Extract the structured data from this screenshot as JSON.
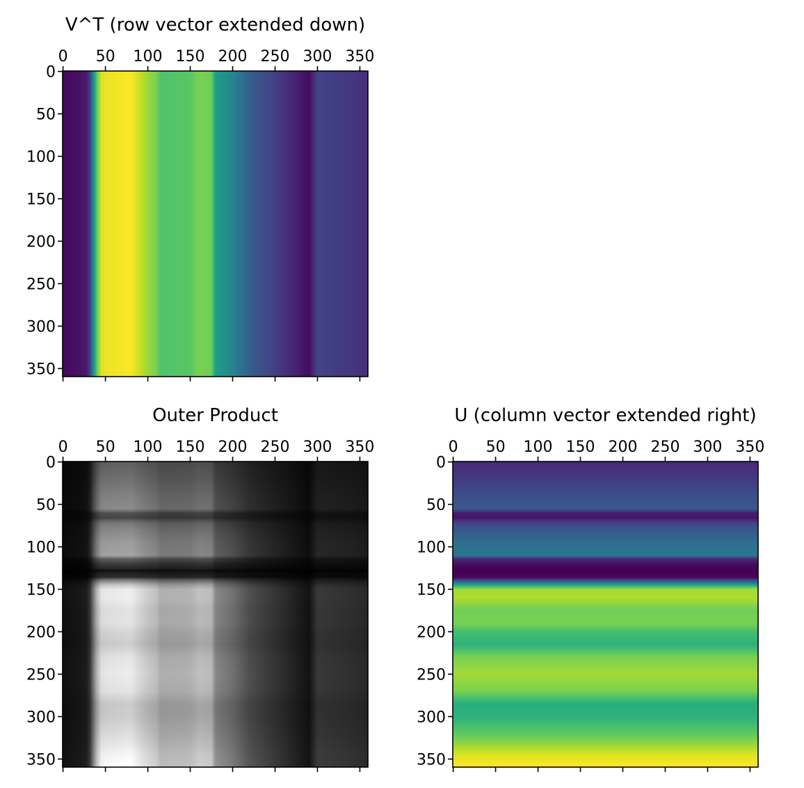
{
  "chart_data": [
    {
      "type": "heatmap",
      "title": "V^T (row vector extended down)",
      "colormap": "viridis",
      "source_vector": "v",
      "orientation": "rows repeated",
      "xlim": [
        -0.5,
        359.5
      ],
      "ylim": [
        359.5,
        -0.5
      ],
      "xticks": [
        "0",
        "50",
        "100",
        "150",
        "200",
        "250",
        "300",
        "350"
      ],
      "yticks": [
        "0",
        "50",
        "100",
        "150",
        "200",
        "250",
        "300",
        "350"
      ]
    },
    {
      "type": "heatmap",
      "title": "Outer Product",
      "colormap": "gray",
      "xlim": [
        -0.5,
        359.5
      ],
      "ylim": [
        359.5,
        -0.5
      ],
      "xticks": [
        "0",
        "50",
        "100",
        "150",
        "200",
        "250",
        "300",
        "350"
      ],
      "yticks": [
        "0",
        "50",
        "100",
        "150",
        "200",
        "250",
        "300",
        "350"
      ]
    },
    {
      "type": "heatmap",
      "title": "U (column vector extended right)",
      "colormap": "viridis",
      "source_vector": "u",
      "orientation": "columns repeated",
      "xlim": [
        -0.5,
        359.5
      ],
      "ylim": [
        359.5,
        -0.5
      ],
      "xticks": [
        "0",
        "50",
        "100",
        "150",
        "200",
        "250",
        "300",
        "350"
      ],
      "yticks": [
        "0",
        "50",
        "100",
        "150",
        "200",
        "250",
        "300",
        "350"
      ]
    }
  ],
  "vectors": {
    "v": {
      "index": [
        0,
        20,
        28,
        32,
        36,
        40,
        45,
        50,
        80,
        90,
        100,
        110,
        115,
        150,
        160,
        175,
        180,
        200,
        220,
        240,
        260,
        290,
        300,
        340,
        359
      ],
      "value": [
        0.02,
        0.05,
        0.08,
        0.2,
        0.5,
        0.75,
        0.95,
        0.97,
        1.0,
        0.92,
        0.85,
        0.8,
        0.72,
        0.74,
        0.8,
        0.78,
        0.55,
        0.45,
        0.3,
        0.22,
        0.15,
        0.03,
        0.2,
        0.16,
        0.13
      ]
    },
    "u": {
      "index": [
        0,
        20,
        40,
        55,
        60,
        66,
        72,
        80,
        95,
        110,
        114,
        120,
        128,
        136,
        140,
        145,
        150,
        160,
        175,
        190,
        200,
        215,
        230,
        250,
        270,
        285,
        300,
        320,
        335,
        345,
        359
      ],
      "value": [
        0.12,
        0.17,
        0.24,
        0.28,
        0.08,
        0.06,
        0.2,
        0.27,
        0.36,
        0.4,
        0.12,
        0.04,
        0.0,
        0.02,
        0.25,
        0.6,
        0.86,
        0.88,
        0.78,
        0.8,
        0.7,
        0.64,
        0.8,
        0.86,
        0.8,
        0.62,
        0.64,
        0.75,
        0.86,
        0.95,
        1.0
      ]
    }
  }
}
